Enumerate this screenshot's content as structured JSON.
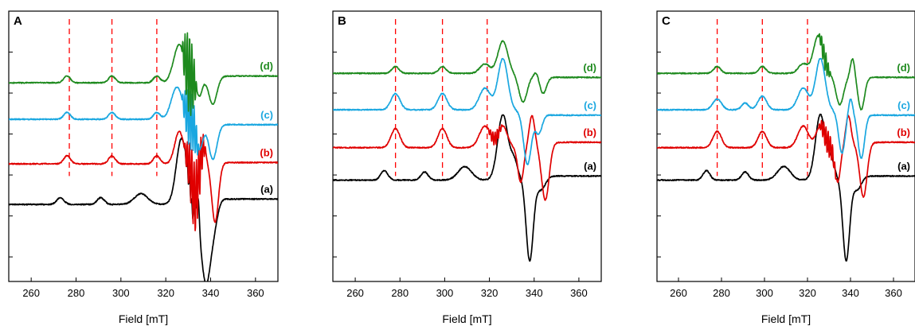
{
  "chart_data": [
    {
      "panel": "A",
      "type": "line",
      "xlabel": "Field [mT]",
      "xlim": [
        250,
        370
      ],
      "xticks": [
        260,
        280,
        300,
        320,
        340,
        360
      ],
      "ylim": [
        0,
        10
      ],
      "yticks_visible": false,
      "grid": false,
      "reference_lines": [
        277,
        296,
        316
      ],
      "series": [
        {
          "name": "(a)",
          "color": "#000000",
          "baseline": 7.15,
          "end_level": 6.95,
          "mid": 331,
          "signals": [
            [
              273,
              0.25,
              1.6
            ],
            [
              291,
              0.25,
              1.6
            ],
            [
              309,
              0.4,
              3.0
            ],
            [
              327,
              2.4,
              2.3
            ],
            [
              332,
              -0.6,
              0.5
            ],
            [
              334.5,
              1.0,
              0.5
            ],
            [
              338,
              -3.1,
              2.3
            ],
            [
              342,
              -0.5,
              1.5
            ]
          ],
          "noise": 0.04,
          "ripple": {
            "start": 328,
            "end": 333,
            "amp": 0.3
          }
        },
        {
          "name": "(b)",
          "color": "#e00000",
          "baseline": 5.65,
          "end_level": 5.6,
          "mid": 336,
          "signals": [
            [
              276,
              0.3,
              1.5
            ],
            [
              296,
              0.3,
              1.5
            ],
            [
              316,
              0.3,
              1.5
            ],
            [
              326,
              1.2,
              2.0
            ],
            [
              333,
              -1.3,
              1.2
            ],
            [
              337,
              0.6,
              1.0
            ],
            [
              342,
              -2.2,
              1.5
            ]
          ],
          "noise": 0.04,
          "ripple": {
            "start": 328,
            "end": 338,
            "amp": 1.3
          }
        },
        {
          "name": "(c)",
          "color": "#1aa7e0",
          "baseline": 4.0,
          "end_level": 4.2,
          "mid": 334,
          "signals": [
            [
              276,
              0.25,
              1.5
            ],
            [
              296,
              0.25,
              1.5
            ],
            [
              316,
              0.25,
              1.5
            ],
            [
              325,
              1.2,
              2.5
            ],
            [
              335,
              -1.0,
              1.5
            ],
            [
              341,
              -1.3,
              1.8
            ]
          ],
          "noise": 0.04,
          "ripple": {
            "start": 327,
            "end": 335,
            "amp": 1.1
          }
        },
        {
          "name": "(d)",
          "color": "#1e8a1e",
          "baseline": 2.65,
          "end_level": 2.4,
          "mid": 336,
          "signals": [
            [
              276,
              0.25,
              1.5
            ],
            [
              296,
              0.25,
              1.5
            ],
            [
              316,
              0.25,
              1.5
            ],
            [
              326,
              1.4,
              2.5
            ],
            [
              335,
              -0.6,
              1.2
            ],
            [
              341,
              -1.0,
              1.8
            ]
          ],
          "noise": 0.04,
          "ripple": {
            "start": 327,
            "end": 334,
            "amp": 1.5
          }
        }
      ]
    },
    {
      "panel": "B",
      "type": "line",
      "xlabel": "Field [mT]",
      "xlim": [
        250,
        370
      ],
      "xticks": [
        260,
        280,
        300,
        320,
        340,
        360
      ],
      "ylim": [
        0,
        10
      ],
      "yticks_visible": false,
      "grid": false,
      "reference_lines": [
        278,
        299,
        319
      ],
      "series": [
        {
          "name": "(a)",
          "color": "#000000",
          "baseline": 6.25,
          "end_level": 6.1,
          "mid": 331,
          "signals": [
            [
              273,
              0.35,
              1.6
            ],
            [
              291,
              0.3,
              1.6
            ],
            [
              309,
              0.5,
              3.0
            ],
            [
              326,
              2.4,
              2.3
            ],
            [
              331,
              0.6,
              1.5
            ],
            [
              338,
              -3.1,
              1.6
            ],
            [
              343,
              -0.5,
              2.0
            ]
          ],
          "noise": 0.04,
          "ripple": null
        },
        {
          "name": "(b)",
          "color": "#e00000",
          "baseline": 5.05,
          "end_level": 4.85,
          "mid": 340,
          "signals": [
            [
              278,
              0.7,
              2.0
            ],
            [
              299,
              0.7,
              2.0
            ],
            [
              318,
              0.8,
              2.5
            ],
            [
              326,
              0.8,
              2.0
            ],
            [
              334,
              -1.3,
              1.3
            ],
            [
              339,
              1.1,
              1.2
            ],
            [
              345,
              -2.1,
              1.7
            ]
          ],
          "noise": 0.04,
          "ripple": {
            "start": 319,
            "end": 326,
            "amp": 0.25
          }
        },
        {
          "name": "(c)",
          "color": "#1aa7e0",
          "baseline": 3.65,
          "end_level": 3.85,
          "mid": 336,
          "signals": [
            [
              278,
              0.6,
              2.0
            ],
            [
              299,
              0.6,
              2.0
            ],
            [
              318,
              0.8,
              2.5
            ],
            [
              326,
              1.9,
              2.2
            ],
            [
              337,
              -1.9,
              1.7
            ],
            [
              342,
              -0.7,
              1.5
            ]
          ],
          "noise": 0.04,
          "ripple": null
        },
        {
          "name": "(d)",
          "color": "#1e8a1e",
          "baseline": 2.3,
          "end_level": 2.45,
          "mid": 336,
          "signals": [
            [
              278,
              0.25,
              1.6
            ],
            [
              299,
              0.25,
              1.6
            ],
            [
              318,
              0.35,
              2.2
            ],
            [
              326,
              1.2,
              2.2
            ],
            [
              335,
              -1.0,
              1.8
            ],
            [
              341,
              0.2,
              1.0
            ],
            [
              344,
              -0.6,
              1.5
            ]
          ],
          "noise": 0.04,
          "ripple": null
        }
      ]
    },
    {
      "panel": "C",
      "type": "line",
      "xlabel": "Field [mT]",
      "xlim": [
        250,
        370
      ],
      "xticks": [
        260,
        280,
        300,
        320,
        340,
        360
      ],
      "ylim": [
        0,
        10
      ],
      "yticks_visible": false,
      "grid": false,
      "reference_lines": [
        278,
        299,
        320
      ],
      "series": [
        {
          "name": "(a)",
          "color": "#000000",
          "baseline": 6.25,
          "end_level": 6.1,
          "mid": 331,
          "signals": [
            [
              273,
              0.35,
              1.6
            ],
            [
              291,
              0.3,
              1.6
            ],
            [
              309,
              0.5,
              3.0
            ],
            [
              326,
              2.4,
              2.3
            ],
            [
              331,
              0.6,
              1.5
            ],
            [
              338,
              -3.1,
              1.6
            ],
            [
              343,
              -0.5,
              2.0
            ]
          ],
          "noise": 0.04,
          "ripple": null
        },
        {
          "name": "(b)",
          "color": "#e00000",
          "baseline": 5.05,
          "end_level": 4.85,
          "mid": 340,
          "signals": [
            [
              278,
              0.6,
              2.0
            ],
            [
              299,
              0.6,
              2.0
            ],
            [
              318,
              0.8,
              2.5
            ],
            [
              326,
              0.8,
              2.0
            ],
            [
              334,
              -1.3,
              1.3
            ],
            [
              339,
              1.1,
              1.2
            ],
            [
              346,
              -2.0,
              1.7
            ]
          ],
          "noise": 0.04,
          "ripple": {
            "start": 325,
            "end": 334,
            "amp": 0.45
          }
        },
        {
          "name": "(c)",
          "color": "#1aa7e0",
          "baseline": 3.65,
          "end_level": 3.85,
          "mid": 336,
          "signals": [
            [
              278,
              0.4,
              2.0
            ],
            [
              291,
              0.25,
              1.6
            ],
            [
              299,
              0.5,
              2.0
            ],
            [
              318,
              0.8,
              2.5
            ],
            [
              326,
              1.9,
              2.2
            ],
            [
              336,
              -1.5,
              1.5
            ],
            [
              340,
              0.6,
              1.0
            ],
            [
              345,
              -1.6,
              1.5
            ]
          ],
          "noise": 0.04,
          "ripple": null
        },
        {
          "name": "(d)",
          "color": "#1e8a1e",
          "baseline": 2.3,
          "end_level": 2.45,
          "mid": 336,
          "signals": [
            [
              278,
              0.25,
              1.6
            ],
            [
              299,
              0.25,
              1.6
            ],
            [
              318,
              0.35,
              2.2
            ],
            [
              325,
              1.4,
              2.2
            ],
            [
              335,
              -1.1,
              1.8
            ],
            [
              341,
              0.7,
              1.0
            ],
            [
              345,
              -1.2,
              1.5
            ]
          ],
          "noise": 0.04,
          "ripple": {
            "start": 325,
            "end": 331,
            "amp": 0.4
          }
        }
      ]
    }
  ]
}
